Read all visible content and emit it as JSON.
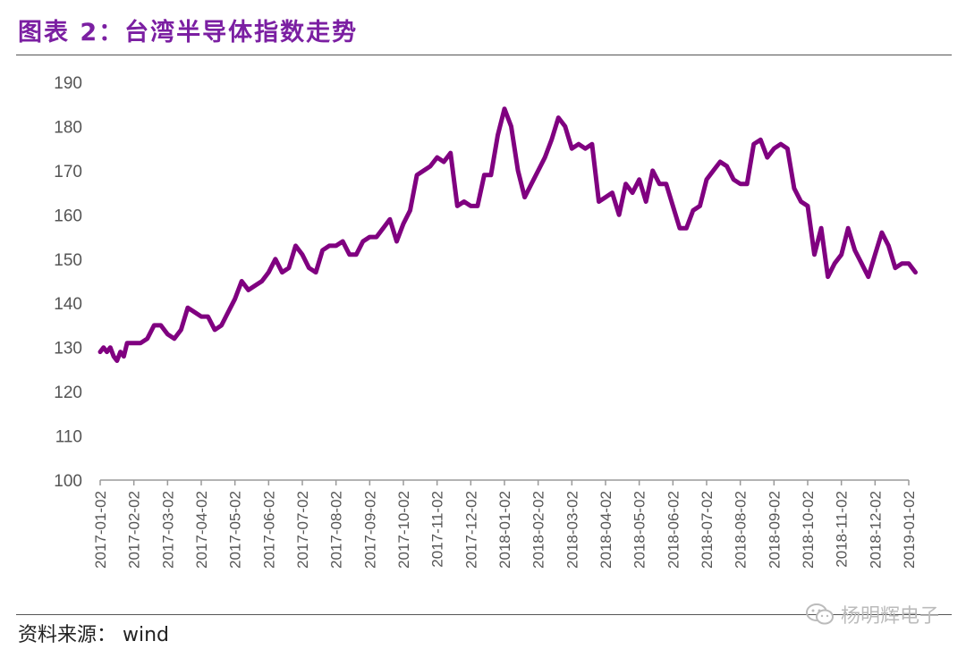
{
  "title": "图表 2：台湾半导体指数走势",
  "source": "资料来源：  wind",
  "watermark": "杨明辉电子",
  "chart_data": {
    "type": "line",
    "title": "",
    "xlabel": "",
    "ylabel": "",
    "ylim": [
      100,
      190
    ],
    "yticks": [
      100,
      110,
      120,
      130,
      140,
      150,
      160,
      170,
      180,
      190
    ],
    "categories": [
      "2017-01-02",
      "2017-02-02",
      "2017-03-02",
      "2017-04-02",
      "2017-05-02",
      "2017-06-02",
      "2017-07-02",
      "2017-08-02",
      "2017-09-02",
      "2017-10-02",
      "2017-11-02",
      "2017-12-02",
      "2018-01-02",
      "2018-02-02",
      "2018-03-02",
      "2018-04-02",
      "2018-05-02",
      "2018-06-02",
      "2018-07-02",
      "2018-08-02",
      "2018-09-02",
      "2018-10-02",
      "2018-11-02",
      "2018-12-02",
      "2019-01-02"
    ],
    "grid": false,
    "legend": "none",
    "line_color": "#800080",
    "series": [
      {
        "name": "",
        "x": [
          0.0,
          0.1,
          0.2,
          0.3,
          0.4,
          0.5,
          0.6,
          0.7,
          0.8,
          1.0,
          1.2,
          1.4,
          1.6,
          1.8,
          2.0,
          2.2,
          2.4,
          2.6,
          2.8,
          3.0,
          3.2,
          3.4,
          3.6,
          3.8,
          4.0,
          4.2,
          4.4,
          4.6,
          4.8,
          5.0,
          5.2,
          5.4,
          5.6,
          5.8,
          6.0,
          6.2,
          6.4,
          6.6,
          6.8,
          7.0,
          7.2,
          7.4,
          7.6,
          7.8,
          8.0,
          8.2,
          8.4,
          8.6,
          8.8,
          9.0,
          9.2,
          9.4,
          9.6,
          9.8,
          10.0,
          10.2,
          10.4,
          10.6,
          10.8,
          11.0,
          11.2,
          11.4,
          11.6,
          11.8,
          12.0,
          12.2,
          12.4,
          12.6,
          12.8,
          13.0,
          13.2,
          13.4,
          13.6,
          13.8,
          14.0,
          14.2,
          14.4,
          14.6,
          14.8,
          15.0,
          15.2,
          15.4,
          15.6,
          15.8,
          16.0,
          16.2,
          16.4,
          16.6,
          16.8,
          17.0,
          17.2,
          17.4,
          17.6,
          17.8,
          18.0,
          18.2,
          18.4,
          18.6,
          18.8,
          19.0,
          19.2,
          19.4,
          19.6,
          19.8,
          20.0,
          20.2,
          20.4,
          20.6,
          20.8,
          21.0,
          21.2,
          21.4,
          21.6,
          21.8,
          22.0,
          22.2,
          22.4,
          22.6,
          22.8,
          23.0,
          23.2,
          23.4,
          23.6,
          23.8,
          24.0,
          24.2
        ],
        "values": [
          129,
          130,
          129,
          130,
          128,
          127,
          129,
          128,
          131,
          131,
          131,
          132,
          135,
          135,
          133,
          132,
          134,
          139,
          138,
          137,
          137,
          134,
          135,
          138,
          141,
          145,
          143,
          144,
          145,
          147,
          150,
          147,
          148,
          153,
          151,
          148,
          147,
          152,
          153,
          153,
          154,
          151,
          151,
          154,
          155,
          155,
          157,
          159,
          154,
          158,
          161,
          169,
          170,
          171,
          173,
          172,
          174,
          162,
          163,
          162,
          162,
          169,
          169,
          178,
          184,
          180,
          170,
          164,
          167,
          170,
          173,
          177,
          182,
          180,
          175,
          176,
          175,
          176,
          163,
          164,
          165,
          160,
          167,
          165,
          168,
          163,
          170,
          167,
          167,
          162,
          157,
          157,
          161,
          162,
          168,
          170,
          172,
          171,
          168,
          167,
          167,
          176,
          177,
          173,
          175,
          176,
          175,
          166,
          163,
          162,
          151,
          157,
          146,
          149,
          151,
          157,
          152,
          149,
          146,
          151,
          156,
          153,
          148,
          149,
          149,
          147
        ]
      }
    ]
  }
}
